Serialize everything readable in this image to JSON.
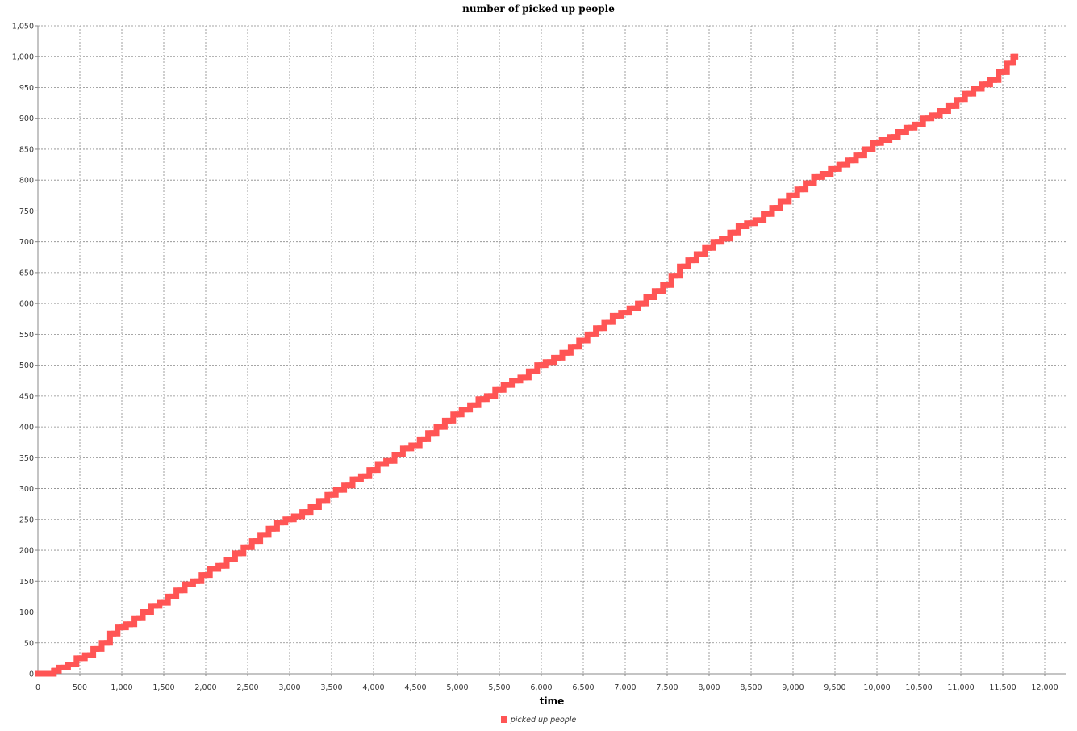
{
  "chart_data": {
    "type": "line",
    "title": "number of picked up people",
    "xlabel": "time",
    "ylabel": "",
    "xlim": [
      0,
      12250
    ],
    "ylim": [
      0,
      1050
    ],
    "xticks": [
      0,
      500,
      1000,
      1500,
      2000,
      2500,
      3000,
      3500,
      4000,
      4500,
      5000,
      5500,
      6000,
      6500,
      7000,
      7500,
      8000,
      8500,
      9000,
      9500,
      10000,
      10500,
      11000,
      11500,
      12000
    ],
    "xtick_labels": [
      "0",
      "500",
      "1,000",
      "1,500",
      "2,000",
      "2,500",
      "3,000",
      "3,500",
      "4,000",
      "4,500",
      "5,000",
      "5,500",
      "6,000",
      "6,500",
      "7,000",
      "7,500",
      "8,000",
      "8,500",
      "9,000",
      "9,500",
      "10,000",
      "10,500",
      "11,000",
      "11,500",
      "12,000"
    ],
    "yticks": [
      0,
      50,
      100,
      150,
      200,
      250,
      300,
      350,
      400,
      450,
      500,
      550,
      600,
      650,
      700,
      750,
      800,
      850,
      900,
      950,
      1000,
      1050
    ],
    "ytick_labels": [
      "0",
      "50",
      "100",
      "150",
      "200",
      "250",
      "300",
      "350",
      "400",
      "450",
      "500",
      "550",
      "600",
      "650",
      "700",
      "750",
      "800",
      "850",
      "900",
      "950",
      "1,000",
      "1,050"
    ],
    "grid": true,
    "legend_position": "bottom-center",
    "series": [
      {
        "name": "picked up people",
        "color": "#ff5555",
        "x": [
          0,
          180,
          200,
          300,
          420,
          500,
          620,
          700,
          820,
          900,
          1000,
          1100,
          1200,
          1300,
          1400,
          1500,
          1600,
          1700,
          1800,
          1900,
          2000,
          2100,
          2200,
          2300,
          2400,
          2500,
          2600,
          2700,
          2800,
          2900,
          3000,
          3100,
          3200,
          3300,
          3400,
          3500,
          3600,
          3700,
          3800,
          3900,
          4000,
          4100,
          4200,
          4300,
          4400,
          4500,
          4600,
          4700,
          4800,
          4900,
          5000,
          5100,
          5200,
          5300,
          5400,
          5500,
          5600,
          5700,
          5800,
          5900,
          6000,
          6100,
          6200,
          6300,
          6400,
          6500,
          6600,
          6700,
          6800,
          6900,
          7000,
          7100,
          7200,
          7300,
          7400,
          7500,
          7600,
          7700,
          7800,
          7900,
          8000,
          8100,
          8200,
          8300,
          8400,
          8500,
          8600,
          8700,
          8800,
          8900,
          9000,
          9100,
          9200,
          9300,
          9400,
          9500,
          9600,
          9700,
          9800,
          9900,
          10000,
          10100,
          10200,
          10300,
          10400,
          10500,
          10600,
          10700,
          10800,
          10900,
          11000,
          11100,
          11200,
          11300,
          11400,
          11500,
          11600,
          11650
        ],
        "y": [
          0,
          0,
          5,
          10,
          15,
          25,
          30,
          40,
          50,
          65,
          75,
          80,
          90,
          100,
          110,
          115,
          125,
          135,
          145,
          150,
          160,
          170,
          175,
          185,
          195,
          205,
          215,
          225,
          235,
          245,
          250,
          255,
          262,
          270,
          280,
          290,
          298,
          305,
          315,
          320,
          330,
          340,
          345,
          355,
          365,
          370,
          380,
          390,
          400,
          410,
          420,
          428,
          435,
          445,
          450,
          460,
          468,
          475,
          480,
          490,
          500,
          505,
          512,
          520,
          530,
          540,
          550,
          560,
          570,
          580,
          585,
          592,
          600,
          610,
          620,
          630,
          645,
          660,
          670,
          680,
          690,
          700,
          705,
          715,
          725,
          730,
          735,
          745,
          755,
          765,
          775,
          785,
          795,
          805,
          810,
          818,
          825,
          832,
          840,
          850,
          860,
          865,
          870,
          878,
          885,
          890,
          900,
          905,
          912,
          920,
          930,
          940,
          948,
          955,
          962,
          975,
          990,
          1000
        ]
      }
    ]
  }
}
